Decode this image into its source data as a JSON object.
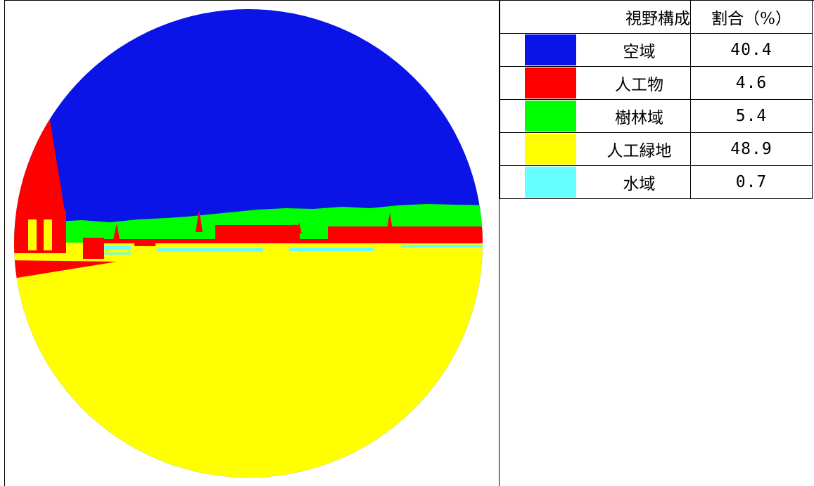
{
  "chart_data": {
    "type": "pie",
    "title": "",
    "header": {
      "label_col": "視野構成",
      "value_col": "割合（%）"
    },
    "categories": [
      "空域",
      "人工物",
      "樹林域",
      "人工緑地",
      "水域"
    ],
    "values": [
      40.4,
      4.6,
      5.4,
      48.9,
      0.7
    ],
    "value_labels": [
      "40.4",
      "4.6",
      "5.4",
      "48.9",
      "0.7"
    ],
    "colors": [
      "#0a14e6",
      "#ff0000",
      "#00ff00",
      "#ffff00",
      "#66ffff"
    ],
    "legend_placement": "right"
  }
}
